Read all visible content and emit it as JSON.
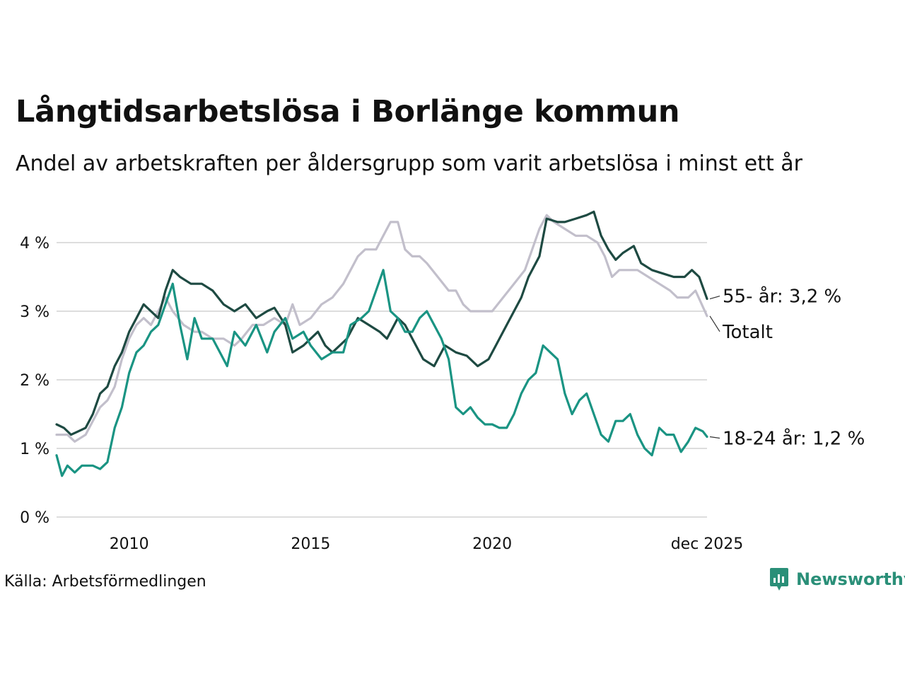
{
  "title": "Långtidsarbetslösa i Borlänge kommun",
  "subtitle": "Andel av arbetskraften per åldersgrupp som varit arbetslösa i minst ett år",
  "source": "Källa: Arbetsförmedlingen",
  "brand": "Newsworthy",
  "colors": {
    "total": "#c2bfcb",
    "age55": "#1e4a42",
    "age18_24": "#1a9483",
    "grid": "#dddddd",
    "brand": "#2a8f78"
  },
  "chart_data": {
    "type": "line",
    "title": "Långtidsarbetslösa i Borlänge kommun",
    "xlabel": "",
    "ylabel": "",
    "x_range": [
      2008.0,
      2025.917
    ],
    "ylim": [
      0,
      4.6
    ],
    "y_ticks": [
      0,
      1,
      2,
      3,
      4
    ],
    "y_tick_labels": [
      "0 %",
      "1 %",
      "2 %",
      "3 %",
      "4 %"
    ],
    "x_ticks": [
      2010,
      2015,
      2020,
      2025.917
    ],
    "x_tick_labels": [
      "2010",
      "2015",
      "2020",
      "dec 2025"
    ],
    "grid": true,
    "series": [
      {
        "name": "Totalt",
        "label": "Totalt",
        "color_key": "total",
        "points": [
          [
            2008.0,
            1.2
          ],
          [
            2008.3,
            1.2
          ],
          [
            2008.5,
            1.1
          ],
          [
            2008.8,
            1.2
          ],
          [
            2009.0,
            1.4
          ],
          [
            2009.2,
            1.6
          ],
          [
            2009.4,
            1.7
          ],
          [
            2009.6,
            1.9
          ],
          [
            2009.8,
            2.3
          ],
          [
            2010.0,
            2.6
          ],
          [
            2010.2,
            2.8
          ],
          [
            2010.4,
            2.9
          ],
          [
            2010.6,
            2.8
          ],
          [
            2010.8,
            3.0
          ],
          [
            2011.0,
            3.2
          ],
          [
            2011.2,
            3.0
          ],
          [
            2011.5,
            2.8
          ],
          [
            2011.8,
            2.7
          ],
          [
            2012.0,
            2.7
          ],
          [
            2012.3,
            2.6
          ],
          [
            2012.6,
            2.6
          ],
          [
            2012.9,
            2.5
          ],
          [
            2013.1,
            2.6
          ],
          [
            2013.4,
            2.8
          ],
          [
            2013.7,
            2.8
          ],
          [
            2014.0,
            2.9
          ],
          [
            2014.3,
            2.8
          ],
          [
            2014.5,
            3.1
          ],
          [
            2014.7,
            2.8
          ],
          [
            2015.0,
            2.9
          ],
          [
            2015.3,
            3.1
          ],
          [
            2015.6,
            3.2
          ],
          [
            2015.9,
            3.4
          ],
          [
            2016.1,
            3.6
          ],
          [
            2016.3,
            3.8
          ],
          [
            2016.5,
            3.9
          ],
          [
            2016.8,
            3.9
          ],
          [
            2017.0,
            4.1
          ],
          [
            2017.2,
            4.3
          ],
          [
            2017.4,
            4.3
          ],
          [
            2017.6,
            3.9
          ],
          [
            2017.8,
            3.8
          ],
          [
            2018.0,
            3.8
          ],
          [
            2018.2,
            3.7
          ],
          [
            2018.5,
            3.5
          ],
          [
            2018.8,
            3.3
          ],
          [
            2019.0,
            3.3
          ],
          [
            2019.2,
            3.1
          ],
          [
            2019.4,
            3.0
          ],
          [
            2019.7,
            3.0
          ],
          [
            2020.0,
            3.0
          ],
          [
            2020.3,
            3.2
          ],
          [
            2020.6,
            3.4
          ],
          [
            2020.9,
            3.6
          ],
          [
            2021.1,
            3.9
          ],
          [
            2021.3,
            4.2
          ],
          [
            2021.5,
            4.4
          ],
          [
            2021.7,
            4.3
          ],
          [
            2022.0,
            4.2
          ],
          [
            2022.3,
            4.1
          ],
          [
            2022.6,
            4.1
          ],
          [
            2022.9,
            4.0
          ],
          [
            2023.1,
            3.8
          ],
          [
            2023.3,
            3.5
          ],
          [
            2023.5,
            3.6
          ],
          [
            2023.8,
            3.6
          ],
          [
            2024.0,
            3.6
          ],
          [
            2024.3,
            3.5
          ],
          [
            2024.6,
            3.4
          ],
          [
            2024.9,
            3.3
          ],
          [
            2025.1,
            3.2
          ],
          [
            2025.4,
            3.2
          ],
          [
            2025.6,
            3.3
          ],
          [
            2025.917,
            2.93
          ]
        ]
      },
      {
        "name": "55- år",
        "label": "55- år: 3,2 %",
        "color_key": "age55",
        "points": [
          [
            2008.0,
            1.35
          ],
          [
            2008.2,
            1.3
          ],
          [
            2008.4,
            1.2
          ],
          [
            2008.6,
            1.25
          ],
          [
            2008.8,
            1.3
          ],
          [
            2009.0,
            1.5
          ],
          [
            2009.2,
            1.8
          ],
          [
            2009.4,
            1.9
          ],
          [
            2009.6,
            2.2
          ],
          [
            2009.8,
            2.4
          ],
          [
            2010.0,
            2.7
          ],
          [
            2010.2,
            2.9
          ],
          [
            2010.4,
            3.1
          ],
          [
            2010.6,
            3.0
          ],
          [
            2010.8,
            2.9
          ],
          [
            2011.0,
            3.3
          ],
          [
            2011.2,
            3.6
          ],
          [
            2011.4,
            3.5
          ],
          [
            2011.7,
            3.4
          ],
          [
            2012.0,
            3.4
          ],
          [
            2012.3,
            3.3
          ],
          [
            2012.6,
            3.1
          ],
          [
            2012.9,
            3.0
          ],
          [
            2013.2,
            3.1
          ],
          [
            2013.5,
            2.9
          ],
          [
            2013.8,
            3.0
          ],
          [
            2014.0,
            3.05
          ],
          [
            2014.3,
            2.8
          ],
          [
            2014.5,
            2.4
          ],
          [
            2014.8,
            2.5
          ],
          [
            2015.0,
            2.6
          ],
          [
            2015.2,
            2.7
          ],
          [
            2015.4,
            2.5
          ],
          [
            2015.6,
            2.4
          ],
          [
            2015.8,
            2.5
          ],
          [
            2016.0,
            2.6
          ],
          [
            2016.3,
            2.9
          ],
          [
            2016.6,
            2.8
          ],
          [
            2016.9,
            2.7
          ],
          [
            2017.1,
            2.6
          ],
          [
            2017.4,
            2.9
          ],
          [
            2017.6,
            2.8
          ],
          [
            2017.9,
            2.5
          ],
          [
            2018.1,
            2.3
          ],
          [
            2018.4,
            2.2
          ],
          [
            2018.7,
            2.5
          ],
          [
            2019.0,
            2.4
          ],
          [
            2019.3,
            2.35
          ],
          [
            2019.6,
            2.2
          ],
          [
            2019.9,
            2.3
          ],
          [
            2020.1,
            2.5
          ],
          [
            2020.4,
            2.8
          ],
          [
            2020.6,
            3.0
          ],
          [
            2020.8,
            3.2
          ],
          [
            2021.0,
            3.5
          ],
          [
            2021.3,
            3.8
          ],
          [
            2021.5,
            4.35
          ],
          [
            2021.8,
            4.3
          ],
          [
            2022.0,
            4.3
          ],
          [
            2022.3,
            4.35
          ],
          [
            2022.6,
            4.4
          ],
          [
            2022.8,
            4.45
          ],
          [
            2023.0,
            4.1
          ],
          [
            2023.2,
            3.9
          ],
          [
            2023.4,
            3.75
          ],
          [
            2023.6,
            3.85
          ],
          [
            2023.9,
            3.95
          ],
          [
            2024.1,
            3.7
          ],
          [
            2024.4,
            3.6
          ],
          [
            2024.7,
            3.55
          ],
          [
            2025.0,
            3.5
          ],
          [
            2025.3,
            3.5
          ],
          [
            2025.5,
            3.6
          ],
          [
            2025.7,
            3.5
          ],
          [
            2025.917,
            3.18
          ]
        ]
      },
      {
        "name": "18-24 år",
        "label": "18-24 år: 1,2 %",
        "color_key": "age18_24",
        "points": [
          [
            2008.0,
            0.9
          ],
          [
            2008.15,
            0.6
          ],
          [
            2008.3,
            0.75
          ],
          [
            2008.5,
            0.65
          ],
          [
            2008.7,
            0.75
          ],
          [
            2009.0,
            0.75
          ],
          [
            2009.2,
            0.7
          ],
          [
            2009.4,
            0.8
          ],
          [
            2009.6,
            1.3
          ],
          [
            2009.8,
            1.6
          ],
          [
            2010.0,
            2.1
          ],
          [
            2010.2,
            2.4
          ],
          [
            2010.4,
            2.5
          ],
          [
            2010.6,
            2.7
          ],
          [
            2010.8,
            2.8
          ],
          [
            2011.0,
            3.1
          ],
          [
            2011.2,
            3.4
          ],
          [
            2011.4,
            2.8
          ],
          [
            2011.6,
            2.3
          ],
          [
            2011.8,
            2.9
          ],
          [
            2012.0,
            2.6
          ],
          [
            2012.3,
            2.6
          ],
          [
            2012.5,
            2.4
          ],
          [
            2012.7,
            2.2
          ],
          [
            2012.9,
            2.7
          ],
          [
            2013.2,
            2.5
          ],
          [
            2013.5,
            2.8
          ],
          [
            2013.8,
            2.4
          ],
          [
            2014.0,
            2.7
          ],
          [
            2014.3,
            2.9
          ],
          [
            2014.5,
            2.6
          ],
          [
            2014.8,
            2.7
          ],
          [
            2015.0,
            2.5
          ],
          [
            2015.3,
            2.3
          ],
          [
            2015.6,
            2.4
          ],
          [
            2015.9,
            2.4
          ],
          [
            2016.1,
            2.8
          ],
          [
            2016.4,
            2.9
          ],
          [
            2016.6,
            3.0
          ],
          [
            2016.8,
            3.3
          ],
          [
            2017.0,
            3.6
          ],
          [
            2017.2,
            3.0
          ],
          [
            2017.4,
            2.9
          ],
          [
            2017.6,
            2.7
          ],
          [
            2017.8,
            2.7
          ],
          [
            2018.0,
            2.9
          ],
          [
            2018.2,
            3.0
          ],
          [
            2018.4,
            2.8
          ],
          [
            2018.6,
            2.6
          ],
          [
            2018.8,
            2.3
          ],
          [
            2019.0,
            1.6
          ],
          [
            2019.2,
            1.5
          ],
          [
            2019.4,
            1.6
          ],
          [
            2019.6,
            1.45
          ],
          [
            2019.8,
            1.35
          ],
          [
            2020.0,
            1.35
          ],
          [
            2020.2,
            1.3
          ],
          [
            2020.4,
            1.3
          ],
          [
            2020.6,
            1.5
          ],
          [
            2020.8,
            1.8
          ],
          [
            2021.0,
            2.0
          ],
          [
            2021.2,
            2.1
          ],
          [
            2021.4,
            2.5
          ],
          [
            2021.6,
            2.4
          ],
          [
            2021.8,
            2.3
          ],
          [
            2022.0,
            1.8
          ],
          [
            2022.2,
            1.5
          ],
          [
            2022.4,
            1.7
          ],
          [
            2022.6,
            1.8
          ],
          [
            2022.8,
            1.5
          ],
          [
            2023.0,
            1.2
          ],
          [
            2023.2,
            1.1
          ],
          [
            2023.4,
            1.4
          ],
          [
            2023.6,
            1.4
          ],
          [
            2023.8,
            1.5
          ],
          [
            2024.0,
            1.2
          ],
          [
            2024.2,
            1.0
          ],
          [
            2024.4,
            0.9
          ],
          [
            2024.6,
            1.3
          ],
          [
            2024.8,
            1.2
          ],
          [
            2025.0,
            1.2
          ],
          [
            2025.2,
            0.95
          ],
          [
            2025.4,
            1.1
          ],
          [
            2025.6,
            1.3
          ],
          [
            2025.8,
            1.25
          ],
          [
            2025.917,
            1.17
          ]
        ]
      }
    ]
  }
}
